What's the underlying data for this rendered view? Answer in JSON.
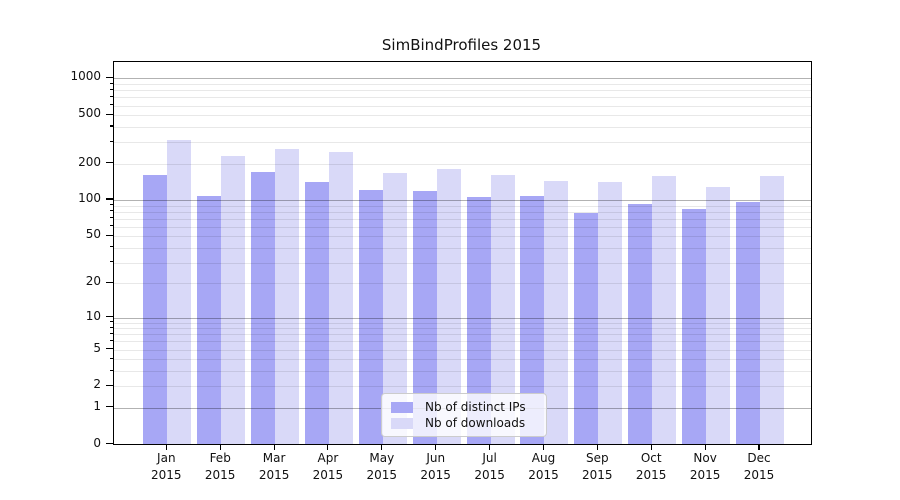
{
  "figure": {
    "title": "SimBindProfiles 2015"
  },
  "legend": {
    "items": [
      {
        "label": "Nb of distinct IPs",
        "color": "#a7a7f5"
      },
      {
        "label": "Nb of downloads",
        "color": "#d9d9f8"
      }
    ]
  },
  "chart_data": {
    "type": "bar",
    "title": "SimBindProfiles 2015",
    "categories": [
      "Jan",
      "Feb",
      "Mar",
      "Apr",
      "May",
      "Jun",
      "Jul",
      "Aug",
      "Sep",
      "Oct",
      "Nov",
      "Dec"
    ],
    "x_tick_year": "2015",
    "series": [
      {
        "name": "Nb of distinct IPs",
        "color": "#a7a7f5",
        "values": [
          160,
          107,
          170,
          140,
          120,
          118,
          104,
          106,
          77,
          92,
          84,
          95
        ]
      },
      {
        "name": "Nb of downloads",
        "color": "#d9d9f8",
        "values": [
          310,
          230,
          260,
          245,
          165,
          178,
          158,
          143,
          140,
          156,
          128,
          156
        ]
      }
    ],
    "yscale": "log1p",
    "ylim": [
      0,
      1340
    ],
    "y_tick_labels": [
      1000,
      500,
      200,
      100,
      50,
      20,
      10,
      5,
      2,
      1,
      0
    ],
    "y_major_gridlines": [
      1,
      10,
      100,
      1000
    ],
    "y_minor_gridlines": [
      2,
      3,
      4,
      5,
      6,
      7,
      8,
      9,
      20,
      30,
      40,
      50,
      60,
      70,
      80,
      90,
      200,
      300,
      400,
      500,
      600,
      700,
      800,
      900
    ],
    "grid": true,
    "legend_position": "lower center (inside axes)"
  },
  "colors": {
    "background": "#ffffff",
    "axis": "#000000",
    "text": "#111111",
    "grid_major": "rgba(0,0,0,0.30)",
    "grid_minor": "rgba(0,0,0,0.09)"
  }
}
